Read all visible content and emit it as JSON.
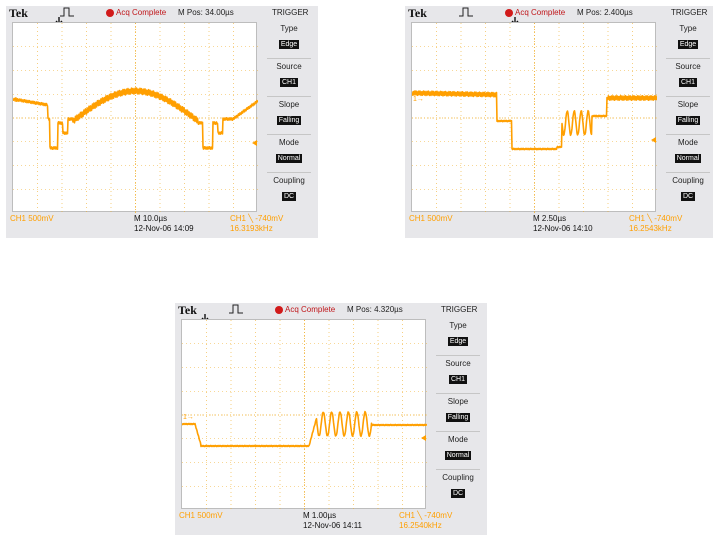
{
  "scopes": [
    {
      "brand": "Tek",
      "acq_status": "Acq Complete",
      "m_pos": "M Pos: 34.00µs",
      "menu_title": "TRIGGER",
      "menu": [
        {
          "label": "Type",
          "value": "Edge"
        },
        {
          "label": "Source",
          "value": "CH1"
        },
        {
          "label": "Slope",
          "value": "Falling"
        },
        {
          "label": "Mode",
          "value": "Normal"
        },
        {
          "label": "Coupling",
          "value": "DC"
        }
      ],
      "ch_scale": "CH1  500mV",
      "time_div": "M 10.0µs",
      "date_time": "12-Nov-06 14:09",
      "trigger_info": "CH1 ╲ -740mV",
      "frequency": "16.3193kHz",
      "ch1_marker": "1→"
    },
    {
      "brand": "Tek",
      "acq_status": "Acq Complete",
      "m_pos": "M Pos: 2.400µs",
      "menu_title": "TRIGGER",
      "menu": [
        {
          "label": "Type",
          "value": "Edge"
        },
        {
          "label": "Source",
          "value": "CH1"
        },
        {
          "label": "Slope",
          "value": "Falling"
        },
        {
          "label": "Mode",
          "value": "Normal"
        },
        {
          "label": "Coupling",
          "value": "DC"
        }
      ],
      "ch_scale": "CH1  500mV",
      "time_div": "M 2.50µs",
      "date_time": "12-Nov-06 14:10",
      "trigger_info": "CH1 ╲ -740mV",
      "frequency": "16.2543kHz",
      "ch1_marker": "1→"
    },
    {
      "brand": "Tek",
      "acq_status": "Acq Complete",
      "m_pos": "M Pos: 4.320µs",
      "menu_title": "TRIGGER",
      "menu": [
        {
          "label": "Type",
          "value": "Edge"
        },
        {
          "label": "Source",
          "value": "CH1"
        },
        {
          "label": "Slope",
          "value": "Falling"
        },
        {
          "label": "Mode",
          "value": "Normal"
        },
        {
          "label": "Coupling",
          "value": "DC"
        }
      ],
      "ch_scale": "CH1  500mV",
      "time_div": "M 1.00µs",
      "date_time": "12-Nov-06 14:11",
      "trigger_info": "CH1 ╲ -740mV",
      "frequency": "16.2540kHz",
      "ch1_marker": "1→"
    }
  ],
  "colors": {
    "trace": "#ff9f00",
    "grid": "#f0b030",
    "acq_red": "#d11a1a",
    "bezel": "#e7e7ea"
  },
  "icons": [
    "pulse-trigger-icon",
    "trigger-position-arrow-icon",
    "acq-status-dot-icon"
  ]
}
